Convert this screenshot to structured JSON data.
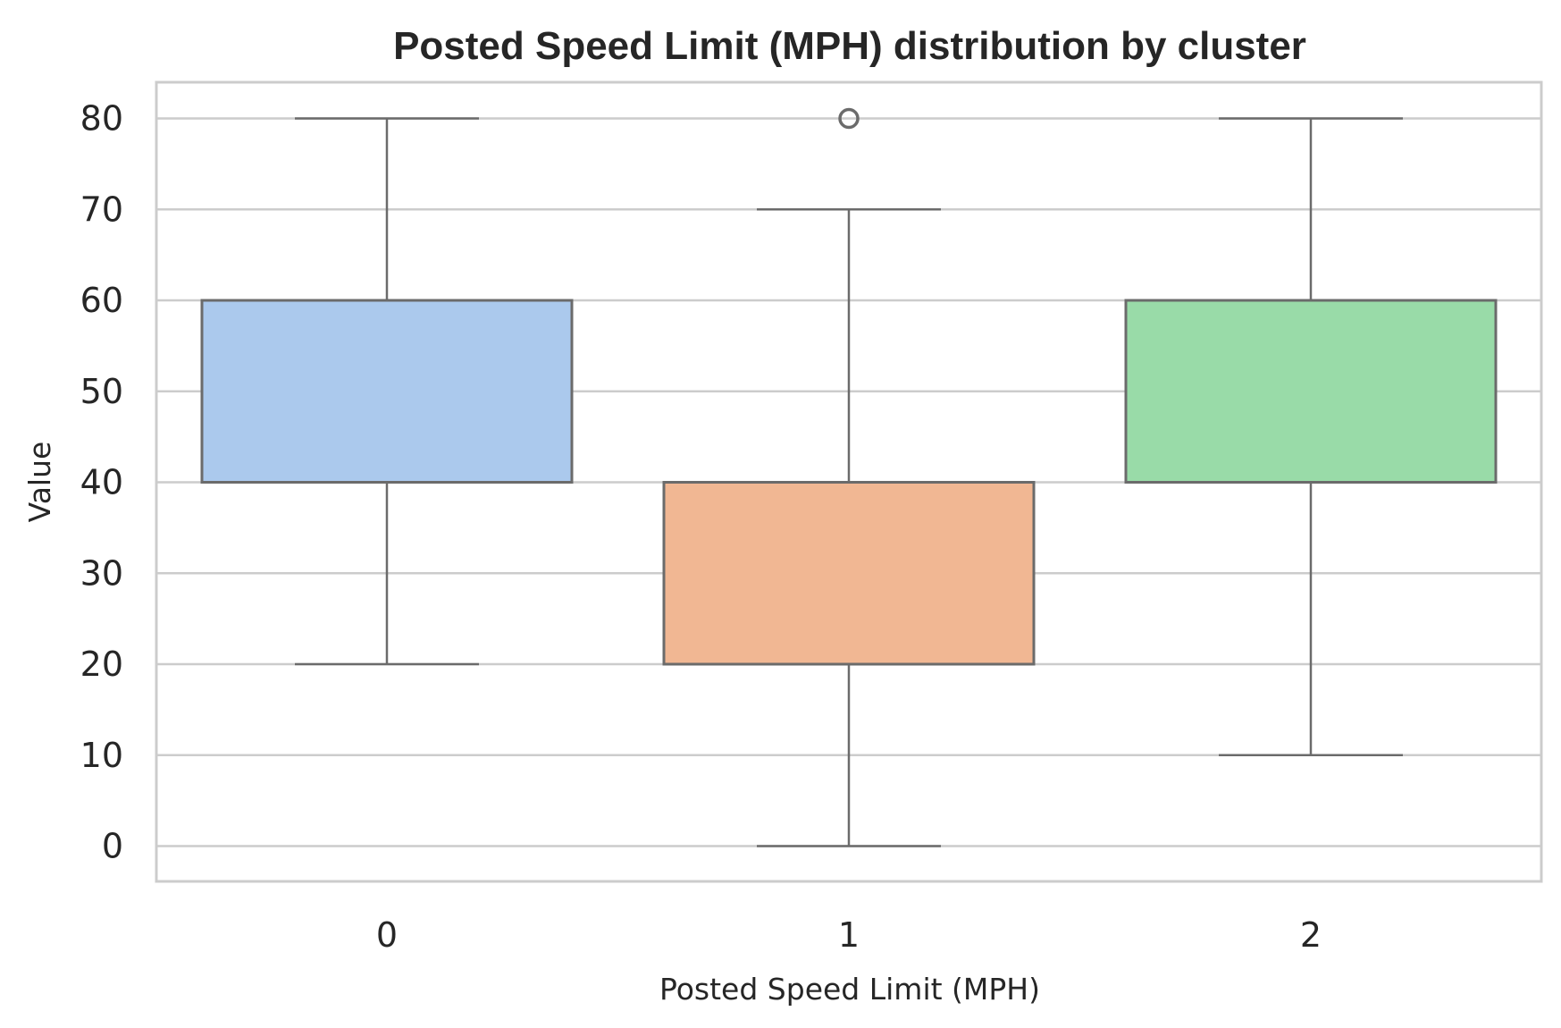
{
  "chart_data": {
    "type": "box",
    "title": "Posted Speed Limit (MPH) distribution by cluster",
    "xlabel": "Posted Speed Limit (MPH)",
    "ylabel": "Value",
    "categories": [
      "0",
      "1",
      "2"
    ],
    "y_ticks": [
      "0",
      "10",
      "20",
      "30",
      "40",
      "50",
      "60",
      "70",
      "80"
    ],
    "ylim": [
      -4,
      84
    ],
    "grid": true,
    "boxes": [
      {
        "category": "0",
        "whisker_low": 20,
        "q1": 40,
        "median": 40,
        "q3": 60,
        "whisker_high": 80,
        "outliers": [],
        "color": "#abc9ed"
      },
      {
        "category": "1",
        "whisker_low": 0,
        "q1": 20,
        "median": 40,
        "q3": 40,
        "whisker_high": 70,
        "outliers": [
          80
        ],
        "color": "#f1b793"
      },
      {
        "category": "2",
        "whisker_low": 10,
        "q1": 40,
        "median": 60,
        "q3": 60,
        "whisker_high": 80,
        "outliers": [],
        "color": "#99dba8"
      }
    ],
    "edge_color": "#6b6b6b",
    "grid_color": "#cccccc"
  }
}
